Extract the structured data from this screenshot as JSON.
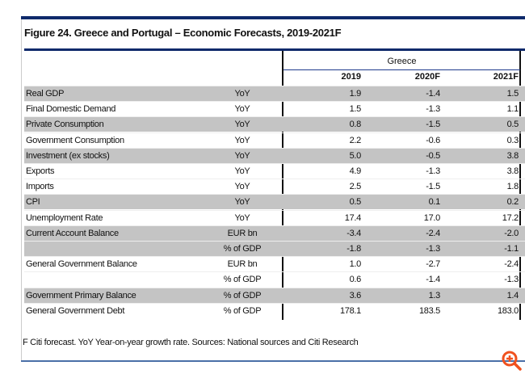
{
  "title": "Figure 24. Greece and Portugal – Economic Forecasts, 2019-2021F",
  "group": "Greece",
  "years": [
    "2019",
    "2020F",
    "2021F"
  ],
  "rows": [
    {
      "label": "Real GDP",
      "unit": "YoY",
      "values": [
        "1.9",
        "-1.4",
        "1.5"
      ],
      "shaded": true
    },
    {
      "label": "Final Domestic Demand",
      "unit": "YoY",
      "values": [
        "1.5",
        "-1.3",
        "1.1"
      ],
      "shaded": false
    },
    {
      "label": "Private Consumption",
      "unit": "YoY",
      "values": [
        "0.8",
        "-1.5",
        "0.5"
      ],
      "shaded": true
    },
    {
      "label": "Government Consumption",
      "unit": "YoY",
      "values": [
        "2.2",
        "-0.6",
        "0.3"
      ],
      "shaded": false
    },
    {
      "label": "Investment (ex stocks)",
      "unit": "YoY",
      "values": [
        "5.0",
        "-0.5",
        "3.8"
      ],
      "shaded": true
    },
    {
      "label": "Exports",
      "unit": "YoY",
      "values": [
        "4.9",
        "-1.3",
        "3.8"
      ],
      "shaded": false
    },
    {
      "label": "Imports",
      "unit": "YoY",
      "values": [
        "2.5",
        "-1.5",
        "1.8"
      ],
      "shaded": false
    },
    {
      "label": "CPI",
      "unit": "YoY",
      "values": [
        "0.5",
        "0.1",
        "0.2"
      ],
      "shaded": true
    },
    {
      "label": "Unemployment Rate",
      "unit": "YoY",
      "values": [
        "17.4",
        "17.0",
        "17.2"
      ],
      "shaded": false
    },
    {
      "label": "Current Account Balance",
      "unit": "EUR bn",
      "values": [
        "-3.4",
        "-2.4",
        "-2.0"
      ],
      "shaded": true
    },
    {
      "label": "",
      "unit": "% of GDP",
      "values": [
        "-1.8",
        "-1.3",
        "-1.1"
      ],
      "shaded": true
    },
    {
      "label": "General Government Balance",
      "unit": "EUR bn",
      "values": [
        "1.0",
        "-2.7",
        "-2.4"
      ],
      "shaded": false
    },
    {
      "label": "",
      "unit": "% of GDP",
      "values": [
        "0.6",
        "-1.4",
        "-1.3"
      ],
      "shaded": false
    },
    {
      "label": "Government Primary Balance",
      "unit": "% of GDP",
      "values": [
        "3.6",
        "1.3",
        "1.4"
      ],
      "shaded": true
    },
    {
      "label": "General Government Debt",
      "unit": "% of GDP",
      "values": [
        "178.1",
        "183.5",
        "183.0"
      ],
      "shaded": false
    }
  ],
  "footnote": "F Citi forecast. YoY Year-on-year growth rate. Sources: National sources and Citi Research",
  "icons": {
    "zoom": "zoom-in-icon"
  },
  "colors": {
    "accent": "#0f2a6b",
    "shade": "#c4c4c4",
    "zoom": "#f0511e"
  }
}
